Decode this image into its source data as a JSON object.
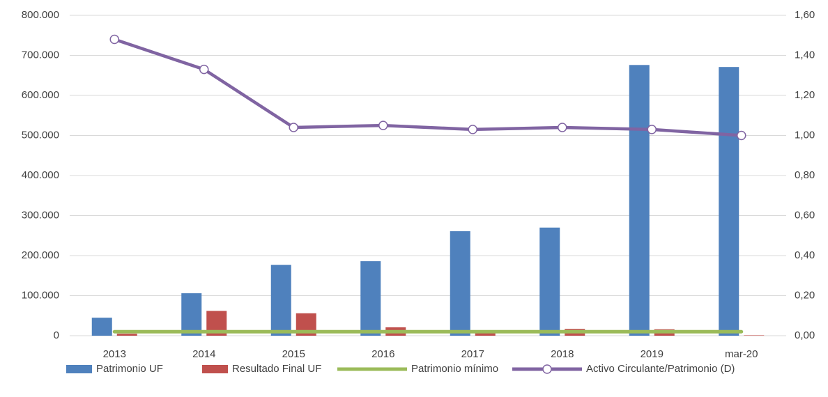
{
  "chart_data": {
    "type": "bar",
    "categories": [
      "2013",
      "2014",
      "2015",
      "2016",
      "2017",
      "2018",
      "2019",
      "mar-20"
    ],
    "series": [
      {
        "name": "Patrimonio UF",
        "color": "#4f81bd",
        "values": [
          45000,
          106000,
          177000,
          186000,
          261000,
          270000,
          676000,
          671000
        ]
      },
      {
        "name": "Resultado Final UF",
        "color": "#c0504d",
        "values": [
          5000,
          62000,
          56000,
          21000,
          8000,
          17000,
          16000,
          1000
        ]
      },
      {
        "name": "Patrimonio mínimo",
        "color": "#9bbb59",
        "type": "line",
        "values": [
          10000,
          10000,
          10000,
          10000,
          10000,
          10000,
          10000,
          10000
        ]
      },
      {
        "name": "Activo Circulante/Patrimonio (D)",
        "color": "#8064a2",
        "type": "line",
        "axis": "y2",
        "markers": true,
        "values": [
          1.48,
          1.33,
          1.04,
          1.05,
          1.03,
          1.04,
          1.03,
          1.0
        ]
      }
    ],
    "ylim": [
      0,
      800000
    ],
    "yticks": [
      0,
      {
        "value": 100000,
        "label": "100.000"
      },
      {
        "value": 200000,
        "label": "200.000"
      },
      {
        "value": 300000,
        "label": "300.000"
      },
      {
        "value": 400000,
        "label": "400.000"
      },
      {
        "value": 500000,
        "label": "500.000"
      },
      {
        "value": 600000,
        "label": "600.000"
      },
      {
        "value": 700000,
        "label": "700.000"
      },
      {
        "value": 800000,
        "label": "800.000"
      }
    ],
    "y2lim": [
      0,
      1.6
    ],
    "y2ticks": [
      {
        "value": 0,
        "label": "0,00"
      },
      {
        "value": 0.2,
        "label": "0,20"
      },
      {
        "value": 0.4,
        "label": "0,40"
      },
      {
        "value": 0.6,
        "label": "0,60"
      },
      {
        "value": 0.8,
        "label": "0,80"
      },
      {
        "value": 1.0,
        "label": "1,00"
      },
      {
        "value": 1.2,
        "label": "1,20"
      },
      {
        "value": 1.4,
        "label": "1,40"
      },
      {
        "value": 1.6,
        "label": "1,60"
      }
    ],
    "grid": true,
    "legend": "bottom"
  }
}
